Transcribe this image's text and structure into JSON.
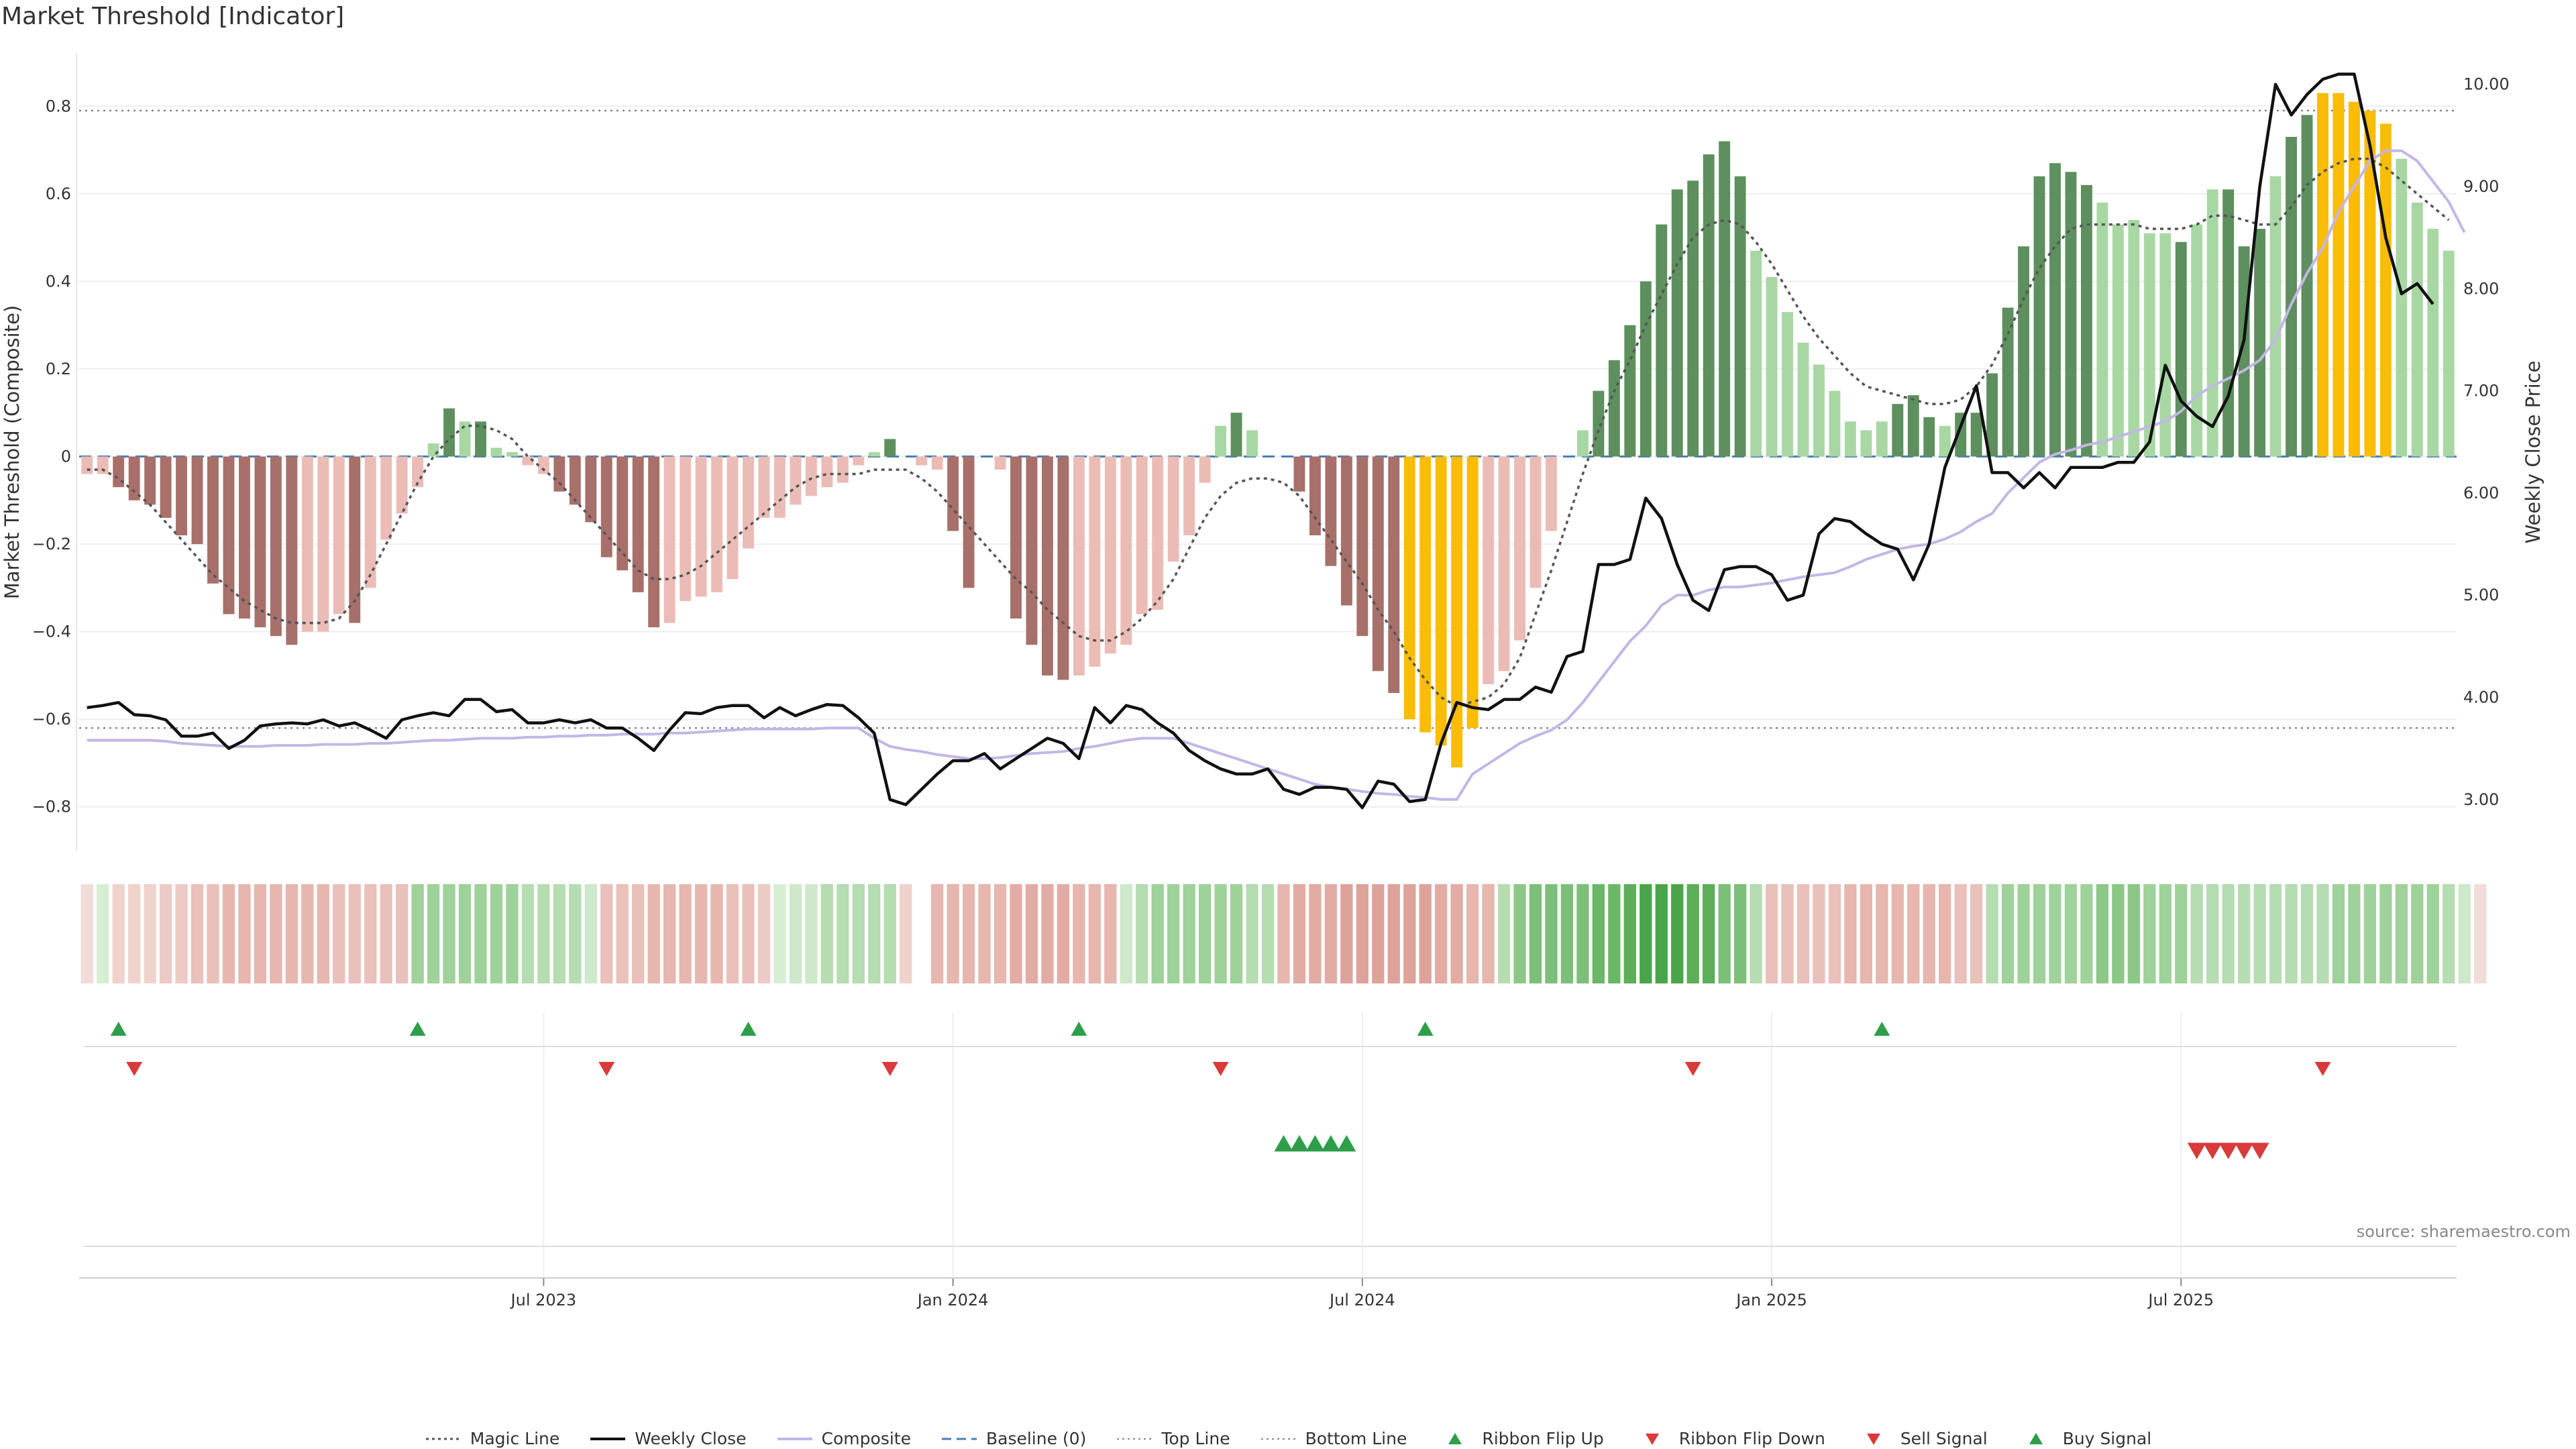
{
  "title": "Market Threshold [Indicator]",
  "source": "source: sharemaestro.com",
  "colors": {
    "dark_red": "#a8706b",
    "light_red": "#ebbcb6",
    "dark_green": "#5e8f5e",
    "light_green": "#a8d7a4",
    "gold": "#fbbc05",
    "composite": "#c3b6e6",
    "close": "#111111",
    "magic": "#555555",
    "baseline": "#4a7fb5",
    "buy": "#2e9e4a",
    "sell": "#d93a3a"
  },
  "chart_data": {
    "type": "bar+line",
    "title": "Market Threshold [Indicator]",
    "ylabel_left": "Market Threshold (Composite)",
    "ylabel_right": "Weekly Close Price",
    "ylim_left": [
      -0.9,
      0.92
    ],
    "ylim_right": [
      2.5,
      10.3
    ],
    "yticks_left": [
      "0.8",
      "0.6",
      "0.4",
      "0.2",
      "0",
      "−0.2",
      "−0.4",
      "−0.6",
      "−0.8"
    ],
    "ytick_values_left": [
      0.8,
      0.6,
      0.4,
      0.2,
      0,
      -0.2,
      -0.4,
      -0.6,
      -0.8
    ],
    "yticks_right": [
      "10.00",
      "9.00",
      "8.00",
      "7.00",
      "6.00",
      "5.00",
      "4.00",
      "3.00"
    ],
    "ytick_values_right": [
      10,
      9,
      8,
      7,
      6,
      5,
      4,
      3
    ],
    "xticks": [
      "Jul 2023",
      "Jan 2024",
      "Jul 2024",
      "Jan 2025",
      "Jul 2025"
    ],
    "xtick_weeks": [
      29,
      55,
      81,
      107,
      133
    ],
    "top_line": 0.79,
    "bottom_line": -0.62,
    "bars": [
      -0.04,
      -0.04,
      -0.07,
      -0.1,
      -0.11,
      -0.14,
      -0.18,
      -0.2,
      -0.29,
      -0.36,
      -0.37,
      -0.39,
      -0.41,
      -0.43,
      -0.4,
      -0.4,
      -0.36,
      -0.38,
      -0.3,
      -0.19,
      -0.13,
      -0.07,
      0.03,
      0.11,
      0.08,
      0.08,
      0.02,
      0.01,
      -0.02,
      -0.04,
      -0.08,
      -0.11,
      -0.15,
      -0.23,
      -0.26,
      -0.31,
      -0.39,
      -0.38,
      -0.33,
      -0.32,
      -0.31,
      -0.28,
      -0.21,
      -0.14,
      -0.14,
      -0.11,
      -0.09,
      -0.07,
      -0.06,
      -0.02,
      0.01,
      0.04,
      0.0,
      -0.02,
      -0.03,
      -0.17,
      -0.3,
      0.0,
      -0.03,
      -0.37,
      -0.43,
      -0.5,
      -0.51,
      -0.5,
      -0.48,
      -0.45,
      -0.43,
      -0.36,
      -0.35,
      -0.24,
      -0.18,
      -0.06,
      0.07,
      0.1,
      0.06,
      0.0,
      0.0,
      -0.08,
      -0.18,
      -0.25,
      -0.34,
      -0.41,
      -0.49,
      -0.54,
      -0.6,
      -0.63,
      -0.66,
      -0.71,
      -0.62,
      -0.52,
      -0.49,
      -0.42,
      -0.3,
      -0.17,
      0.0,
      0.06,
      0.15,
      0.22,
      0.3,
      0.4,
      0.53,
      0.61,
      0.63,
      0.69,
      0.72,
      0.64,
      0.47,
      0.41,
      0.33,
      0.26,
      0.21,
      0.15,
      0.08,
      0.06,
      0.08,
      0.12,
      0.14,
      0.09,
      0.07,
      0.1,
      0.1,
      0.19,
      0.34,
      0.48,
      0.64,
      0.67,
      0.65,
      0.62,
      0.58,
      0.53,
      0.54,
      0.51,
      0.51,
      0.49,
      0.53,
      0.61,
      0.61,
      0.48,
      0.52,
      0.64,
      0.73,
      0.78,
      0.83,
      0.83,
      0.81,
      0.79,
      0.76,
      0.68,
      0.58,
      0.52,
      0.47
    ],
    "bar_colors": [
      "LR",
      "LR",
      "DR",
      "DR",
      "DR",
      "DR",
      "DR",
      "DR",
      "DR",
      "DR",
      "DR",
      "DR",
      "DR",
      "DR",
      "LR",
      "LR",
      "LR",
      "DR",
      "LR",
      "LR",
      "LR",
      "LR",
      "LG",
      "DG",
      "LG",
      "DG",
      "LG",
      "LG",
      "LR",
      "LR",
      "DR",
      "DR",
      "DR",
      "DR",
      "DR",
      "DR",
      "DR",
      "LR",
      "LR",
      "LR",
      "LR",
      "LR",
      "LR",
      "LR",
      "LR",
      "LR",
      "LR",
      "LR",
      "LR",
      "LR",
      "LG",
      "DG",
      "LG",
      "LR",
      "LR",
      "DR",
      "DR",
      "LR",
      "LR",
      "DR",
      "DR",
      "DR",
      "DR",
      "LR",
      "LR",
      "LR",
      "LR",
      "LR",
      "LR",
      "LR",
      "LR",
      "LR",
      "LG",
      "DG",
      "LG",
      "LR",
      "LR",
      "DR",
      "DR",
      "DR",
      "DR",
      "DR",
      "DR",
      "DR",
      "GO",
      "GO",
      "GO",
      "GO",
      "GO",
      "LR",
      "LR",
      "LR",
      "LR",
      "LR",
      "LR",
      "LG",
      "DG",
      "DG",
      "DG",
      "DG",
      "DG",
      "DG",
      "DG",
      "DG",
      "DG",
      "DG",
      "LG",
      "LG",
      "LG",
      "LG",
      "LG",
      "LG",
      "LG",
      "LG",
      "LG",
      "DG",
      "DG",
      "DG",
      "LG",
      "DG",
      "DG",
      "DG",
      "DG",
      "DG",
      "DG",
      "DG",
      "DG",
      "DG",
      "LG",
      "LG",
      "LG",
      "LG",
      "LG",
      "DG",
      "LG",
      "LG",
      "DG",
      "DG",
      "DG",
      "LG",
      "DG",
      "DG",
      "GO",
      "GO",
      "GO",
      "GO",
      "GO",
      "LG",
      "LG",
      "LG",
      "LG",
      "LG",
      "LG"
    ],
    "magic_line": [
      -0.03,
      -0.03,
      -0.05,
      -0.08,
      -0.11,
      -0.15,
      -0.19,
      -0.23,
      -0.27,
      -0.3,
      -0.33,
      -0.35,
      -0.37,
      -0.38,
      -0.38,
      -0.38,
      -0.37,
      -0.33,
      -0.27,
      -0.2,
      -0.13,
      -0.06,
      0.0,
      0.04,
      0.07,
      0.07,
      0.06,
      0.04,
      0.0,
      -0.03,
      -0.06,
      -0.1,
      -0.14,
      -0.18,
      -0.22,
      -0.26,
      -0.28,
      -0.28,
      -0.27,
      -0.25,
      -0.22,
      -0.19,
      -0.16,
      -0.13,
      -0.1,
      -0.07,
      -0.05,
      -0.04,
      -0.04,
      -0.04,
      -0.03,
      -0.03,
      -0.03,
      -0.05,
      -0.08,
      -0.12,
      -0.16,
      -0.2,
      -0.24,
      -0.28,
      -0.31,
      -0.35,
      -0.38,
      -0.41,
      -0.42,
      -0.42,
      -0.4,
      -0.37,
      -0.33,
      -0.28,
      -0.21,
      -0.14,
      -0.09,
      -0.06,
      -0.05,
      -0.05,
      -0.06,
      -0.09,
      -0.14,
      -0.19,
      -0.24,
      -0.29,
      -0.35,
      -0.4,
      -0.46,
      -0.51,
      -0.55,
      -0.57,
      -0.56,
      -0.55,
      -0.52,
      -0.46,
      -0.36,
      -0.26,
      -0.15,
      -0.04,
      0.06,
      0.15,
      0.22,
      0.3,
      0.37,
      0.44,
      0.5,
      0.53,
      0.54,
      0.53,
      0.49,
      0.44,
      0.38,
      0.32,
      0.27,
      0.23,
      0.19,
      0.16,
      0.15,
      0.14,
      0.13,
      0.12,
      0.12,
      0.13,
      0.16,
      0.21,
      0.28,
      0.36,
      0.43,
      0.48,
      0.52,
      0.53,
      0.53,
      0.53,
      0.53,
      0.52,
      0.52,
      0.52,
      0.53,
      0.55,
      0.55,
      0.54,
      0.53,
      0.53,
      0.57,
      0.62,
      0.65,
      0.67,
      0.68,
      0.68,
      0.66,
      0.63,
      0.6,
      0.57,
      0.54
    ],
    "weekly_close": [
      3.9,
      3.92,
      3.95,
      3.83,
      3.82,
      3.78,
      3.62,
      3.62,
      3.65,
      3.5,
      3.58,
      3.72,
      3.74,
      3.75,
      3.74,
      3.78,
      3.72,
      3.75,
      3.68,
      3.6,
      3.78,
      3.82,
      3.85,
      3.82,
      3.98,
      3.98,
      3.86,
      3.88,
      3.75,
      3.75,
      3.78,
      3.75,
      3.78,
      3.7,
      3.7,
      3.6,
      3.48,
      3.68,
      3.85,
      3.84,
      3.9,
      3.92,
      3.92,
      3.8,
      3.9,
      3.82,
      3.88,
      3.93,
      3.92,
      3.8,
      3.65,
      3.0,
      2.95,
      3.1,
      3.25,
      3.38,
      3.38,
      3.45,
      3.3,
      3.4,
      3.5,
      3.6,
      3.55,
      3.4,
      3.9,
      3.75,
      3.92,
      3.88,
      3.75,
      3.65,
      3.48,
      3.38,
      3.3,
      3.25,
      3.25,
      3.3,
      3.1,
      3.05,
      3.12,
      3.12,
      3.1,
      2.92,
      3.18,
      3.15,
      2.98,
      3.0,
      3.55,
      3.95,
      3.9,
      3.88,
      3.98,
      3.98,
      4.1,
      4.05,
      4.4,
      4.45,
      5.3,
      5.3,
      5.35,
      5.95,
      5.75,
      5.3,
      4.95,
      4.85,
      5.25,
      5.28,
      5.28,
      5.2,
      4.95,
      5.0,
      5.6,
      5.75,
      5.72,
      5.6,
      5.5,
      5.45,
      5.15,
      5.5,
      6.25,
      6.65,
      7.05,
      6.2,
      6.2,
      6.05,
      6.2,
      6.05,
      6.25,
      6.25,
      6.25,
      6.3,
      6.3,
      6.5,
      7.25,
      6.9,
      6.75,
      6.65,
      6.95,
      7.5,
      9.0,
      10.0,
      9.7,
      9.9,
      10.05,
      10.1,
      10.1,
      9.4,
      8.5,
      7.95,
      8.05,
      7.85
    ],
    "composite": [
      3.58,
      3.58,
      3.58,
      3.58,
      3.58,
      3.57,
      3.55,
      3.54,
      3.53,
      3.52,
      3.52,
      3.52,
      3.53,
      3.53,
      3.53,
      3.54,
      3.54,
      3.54,
      3.55,
      3.55,
      3.56,
      3.57,
      3.58,
      3.58,
      3.59,
      3.6,
      3.6,
      3.6,
      3.61,
      3.61,
      3.62,
      3.62,
      3.63,
      3.63,
      3.64,
      3.64,
      3.64,
      3.65,
      3.65,
      3.66,
      3.67,
      3.68,
      3.69,
      3.69,
      3.69,
      3.69,
      3.69,
      3.7,
      3.7,
      3.7,
      3.6,
      3.52,
      3.49,
      3.47,
      3.44,
      3.42,
      3.4,
      3.4,
      3.41,
      3.43,
      3.45,
      3.46,
      3.47,
      3.5,
      3.52,
      3.55,
      3.58,
      3.6,
      3.6,
      3.6,
      3.55,
      3.5,
      3.45,
      3.4,
      3.35,
      3.3,
      3.25,
      3.2,
      3.15,
      3.12,
      3.1,
      3.08,
      3.06,
      3.05,
      3.03,
      3.02,
      3.0,
      3.0,
      3.25,
      3.35,
      3.45,
      3.55,
      3.62,
      3.68,
      3.78,
      3.95,
      4.15,
      4.35,
      4.55,
      4.7,
      4.9,
      5.0,
      5.0,
      5.05,
      5.08,
      5.08,
      5.1,
      5.12,
      5.15,
      5.18,
      5.2,
      5.22,
      5.28,
      5.35,
      5.4,
      5.45,
      5.48,
      5.5,
      5.55,
      5.62,
      5.72,
      5.8,
      6.0,
      6.15,
      6.3,
      6.38,
      6.42,
      6.47,
      6.5,
      6.55,
      6.6,
      6.65,
      6.7,
      6.8,
      6.95,
      7.05,
      7.12,
      7.2,
      7.3,
      7.5,
      7.85,
      8.15,
      8.4,
      8.75,
      9.0,
      9.25,
      9.35,
      9.35,
      9.25,
      9.05,
      8.85,
      8.55
    ],
    "ribbon_colors": [
      "#f2dcd9",
      "#d6efd3",
      "#f0d2cd",
      "#f0d2cd",
      "#f0d2cd",
      "#eccac5",
      "#eccac5",
      "#e9c0ba",
      "#e9c0ba",
      "#e6b6af",
      "#e6b6af",
      "#e6b6af",
      "#e6b6af",
      "#e6b6af",
      "#e6b6af",
      "#e6b6af",
      "#e9c0ba",
      "#e9c0ba",
      "#e9c0ba",
      "#e9c0ba",
      "#e9c0ba",
      "#9fd19a",
      "#9fd19a",
      "#9fd19a",
      "#9fd19a",
      "#9fd19a",
      "#9fd19a",
      "#9fd19a",
      "#b6dcb2",
      "#b6dcb2",
      "#b6dcb2",
      "#b6dcb2",
      "#cde8ca",
      "#e9c0ba",
      "#e9c0ba",
      "#e9c0ba",
      "#e6b6af",
      "#e6b6af",
      "#e6b6af",
      "#e6b6af",
      "#e6b6af",
      "#e9c0ba",
      "#e9c0ba",
      "#eccac5",
      "#d6efd3",
      "#cde8ca",
      "#cde8ca",
      "#b6dcb2",
      "#b6dcb2",
      "#b6dcb2",
      "#b6dcb2",
      "#b6dcb2",
      "#f0d2cd",
      "",
      "#e6b6af",
      "#e6b6af",
      "#e6b6af",
      "#e6b6af",
      "#e6b6af",
      "#e2aca4",
      "#e2aca4",
      "#e2aca4",
      "#e2aca4",
      "#e6b6af",
      "#e6b6af",
      "#e6b6af",
      "#cde8ca",
      "#b6dcb2",
      "#9fd19a",
      "#9fd19a",
      "#9fd19a",
      "#9fd19a",
      "#9fd19a",
      "#9fd19a",
      "#b6dcb2",
      "#b6dcb2",
      "#e6b6af",
      "#e2aca4",
      "#e2aca4",
      "#e2aca4",
      "#dda39a",
      "#dda39a",
      "#dda39a",
      "#dda39a",
      "#dda39a",
      "#dda39a",
      "#e2aca4",
      "#e2aca4",
      "#e6b6af",
      "#e6b6af",
      "#b6dcb2",
      "#8cc788",
      "#7cbf78",
      "#7cbf78",
      "#7cbf78",
      "#7cbf78",
      "#6bb768",
      "#6bb768",
      "#5cae59",
      "#4aa54a",
      "#4aa54a",
      "#4aa54a",
      "#5cae59",
      "#5cae59",
      "#7cbf78",
      "#7cbf78",
      "#b6dcb2",
      "#e9c0ba",
      "#e9c0ba",
      "#e9c0ba",
      "#e9c0ba",
      "#e9c0ba",
      "#e6b6af",
      "#e6b6af",
      "#e6b6af",
      "#e6b6af",
      "#e6b6af",
      "#e6b6af",
      "#e6b6af",
      "#e9c0ba",
      "#e9c0ba",
      "#b6dcb2",
      "#9fd19a",
      "#9fd19a",
      "#9fd19a",
      "#9fd19a",
      "#9fd19a",
      "#9fd19a",
      "#8cc788",
      "#8cc788",
      "#8cc788",
      "#9fd19a",
      "#9fd19a",
      "#9fd19a",
      "#b6dcb2",
      "#b6dcb2",
      "#b6dcb2",
      "#b6dcb2",
      "#b6dcb2",
      "#b6dcb2",
      "#b6dcb2",
      "#b6dcb2",
      "#b6dcb2",
      "#9fd19a",
      "#9fd19a",
      "#9fd19a",
      "#9fd19a",
      "#9fd19a",
      "#9fd19a",
      "#9fd19a",
      "#b6dcb2",
      "#cde8ca",
      "#f2dcd9"
    ],
    "ribbon_flip_up_weeks": [
      2,
      21,
      42,
      63,
      85,
      114
    ],
    "ribbon_flip_down_weeks": [
      3,
      33,
      51,
      72,
      102,
      142
    ],
    "buy_signal_weeks": [
      76,
      77,
      78,
      79,
      80
    ],
    "sell_signal_weeks": [
      134,
      135,
      136,
      137,
      138
    ]
  },
  "legend": [
    {
      "label": "Magic Line",
      "icon": "dotted-line"
    },
    {
      "label": "Weekly Close",
      "icon": "solid-line"
    },
    {
      "label": "Composite",
      "icon": "composite-line"
    },
    {
      "label": "Baseline (0)",
      "icon": "dashed-line"
    },
    {
      "label": "Top Line",
      "icon": "dotted-gray-line"
    },
    {
      "label": "Bottom Line",
      "icon": "dotted-gray-line"
    },
    {
      "label": "Ribbon Flip Up",
      "icon": "triangle-up-icon"
    },
    {
      "label": "Ribbon Flip Down",
      "icon": "triangle-down-icon"
    },
    {
      "label": "Sell Signal",
      "icon": "triangle-down-icon"
    },
    {
      "label": "Buy Signal",
      "icon": "triangle-up-icon"
    }
  ]
}
